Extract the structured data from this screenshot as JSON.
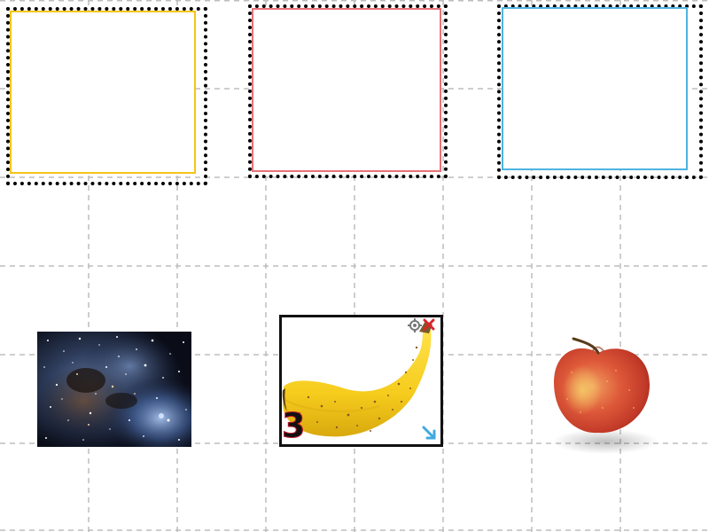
{
  "workspace": {
    "grid_color": "#bdbdbd",
    "background": "#ffffff"
  },
  "slots": [
    {
      "name": "slot-yellow",
      "color": "#f5c518"
    },
    {
      "name": "slot-red",
      "color": "#e8737a"
    },
    {
      "name": "slot-blue",
      "color": "#4fb3e0"
    }
  ],
  "items": [
    {
      "name": "nebula-image",
      "icon": "galaxy-image"
    },
    {
      "name": "banana-image",
      "icon": "banana-image",
      "selected": true,
      "index_label": "3"
    },
    {
      "name": "apple-image",
      "icon": "apple-image"
    }
  ],
  "banana_card": {
    "border_color": "#111111",
    "handles": {
      "rotate": "rotate-icon",
      "delete": "close-icon",
      "resize": "resize-arrow-icon"
    },
    "delete_color": "#d9262c",
    "resize_color": "#3fa9e0"
  }
}
